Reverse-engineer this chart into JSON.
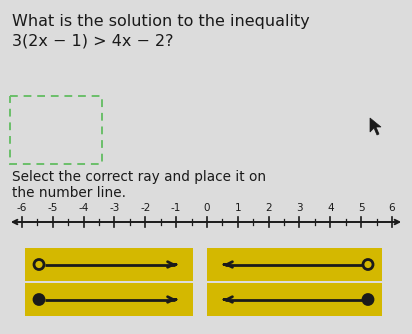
{
  "title_line1": "What is the solution to the inequality",
  "title_line2": "3(2x − 1) > 4x − 2?",
  "instruction_line1": "Select the correct ray and place it on",
  "instruction_line2": "the number line.",
  "number_line_ticks": [
    -6,
    -5,
    -4,
    -3,
    -2,
    -1,
    0,
    1,
    2,
    3,
    4,
    5,
    6
  ],
  "background_color": "#dcdcdc",
  "dashed_box_color": "#6abf69",
  "yellow_color": "#d4b800",
  "arrow_color": "#1a1a1a",
  "text_color": "#1a1a1a",
  "title_fontsize": 11.5,
  "instruction_fontsize": 9.8,
  "tick_fontsize": 7.5,
  "ray_configs": [
    {
      "open": true,
      "right": true,
      "circle_left": true
    },
    {
      "open": true,
      "right": false,
      "circle_left": false
    },
    {
      "open": false,
      "right": true,
      "circle_left": true
    },
    {
      "open": false,
      "right": false,
      "circle_left": false
    }
  ]
}
